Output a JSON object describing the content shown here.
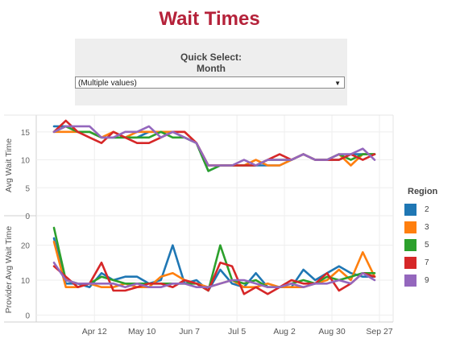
{
  "title": "Wait Times",
  "filter": {
    "label": "Quick Select:\nMonth",
    "value": "(Multiple values)"
  },
  "legend": {
    "title": "Region",
    "items": [
      {
        "label": "2",
        "color": "#1f77b4"
      },
      {
        "label": "3",
        "color": "#ff7f0e"
      },
      {
        "label": "5",
        "color": "#2ca02c"
      },
      {
        "label": "7",
        "color": "#d62728"
      },
      {
        "label": "9",
        "color": "#9467bd"
      }
    ]
  },
  "chart_data": {
    "type": "line",
    "x_tick_labels": [
      "Apr 12",
      "May 10",
      "Jun 7",
      "Jul 5",
      "Aug 2",
      "Aug 30",
      "Sep 27"
    ],
    "weeks": 28,
    "panels": [
      {
        "ylabel": "Avg Wait Time",
        "ylim": [
          0,
          18
        ],
        "yticks": [
          0,
          5,
          10,
          15
        ],
        "series": [
          {
            "name": "2",
            "color": "#1f77b4",
            "values": [
              16,
              16,
              15,
              15,
              14,
              14,
              14,
              14,
              15,
              15,
              15,
              14,
              13,
              8,
              9,
              9,
              9,
              9,
              9,
              9,
              10,
              11,
              10,
              10,
              10,
              11,
              11,
              11
            ]
          },
          {
            "name": "3",
            "color": "#ff7f0e",
            "values": [
              15,
              15,
              15,
              15,
              14,
              15,
              14,
              15,
              15,
              15,
              15,
              15,
              13,
              9,
              9,
              9,
              9,
              10,
              9,
              9,
              10,
              11,
              10,
              10,
              11,
              9,
              11,
              11
            ]
          },
          {
            "name": "5",
            "color": "#2ca02c",
            "values": [
              15,
              16,
              15,
              15,
              14,
              14,
              14,
              14,
              14,
              15,
              14,
              14,
              13,
              8,
              9,
              9,
              9,
              9,
              10,
              10,
              10,
              11,
              10,
              10,
              11,
              10,
              11,
              11
            ]
          },
          {
            "name": "7",
            "color": "#d62728",
            "values": [
              15,
              17,
              15,
              14,
              13,
              15,
              14,
              13,
              13,
              14,
              15,
              15,
              13,
              9,
              9,
              9,
              9,
              9,
              10,
              11,
              10,
              11,
              10,
              10,
              10,
              11,
              10,
              11
            ]
          },
          {
            "name": "9",
            "color": "#9467bd",
            "values": [
              15,
              16,
              16,
              16,
              14,
              14,
              15,
              15,
              16,
              14,
              15,
              14,
              13,
              9,
              9,
              9,
              10,
              9,
              10,
              10,
              10,
              11,
              10,
              10,
              11,
              11,
              12,
              10
            ]
          }
        ]
      },
      {
        "ylabel": "Provider Avg Wait Time",
        "ylim": [
          -2,
          28
        ],
        "yticks": [
          0,
          10,
          20
        ],
        "series": [
          {
            "name": "2",
            "color": "#1f77b4",
            "values": [
              22,
              9,
              9,
              8,
              12,
              10,
              11,
              11,
              9,
              10,
              20,
              9,
              10,
              7,
              13,
              9,
              8,
              12,
              8,
              8,
              8,
              13,
              10,
              12,
              14,
              12,
              11,
              11
            ]
          },
          {
            "name": "3",
            "color": "#ff7f0e",
            "values": [
              21,
              8,
              8,
              9,
              8,
              8,
              9,
              8,
              8,
              11,
              12,
              10,
              9,
              8,
              9,
              10,
              8,
              8,
              9,
              8,
              8,
              8,
              9,
              10,
              13,
              10,
              18,
              11
            ]
          },
          {
            "name": "5",
            "color": "#2ca02c",
            "values": [
              25,
              10,
              9,
              9,
              11,
              10,
              9,
              9,
              9,
              9,
              9,
              9,
              9,
              7,
              20,
              10,
              9,
              10,
              8,
              8,
              9,
              10,
              9,
              11,
              10,
              11,
              12,
              12
            ]
          },
          {
            "name": "7",
            "color": "#d62728",
            "values": [
              14,
              11,
              8,
              9,
              15,
              7,
              7,
              8,
              9,
              9,
              8,
              10,
              9,
              7,
              15,
              14,
              6,
              8,
              6,
              8,
              10,
              9,
              9,
              12,
              7,
              9,
              12,
              11
            ]
          },
          {
            "name": "9",
            "color": "#9467bd",
            "values": [
              15,
              10,
              9,
              9,
              9,
              9,
              8,
              9,
              8,
              8,
              9,
              9,
              8,
              8,
              9,
              10,
              10,
              9,
              8,
              8,
              9,
              8,
              9,
              9,
              10,
              9,
              12,
              10
            ]
          }
        ]
      }
    ]
  }
}
